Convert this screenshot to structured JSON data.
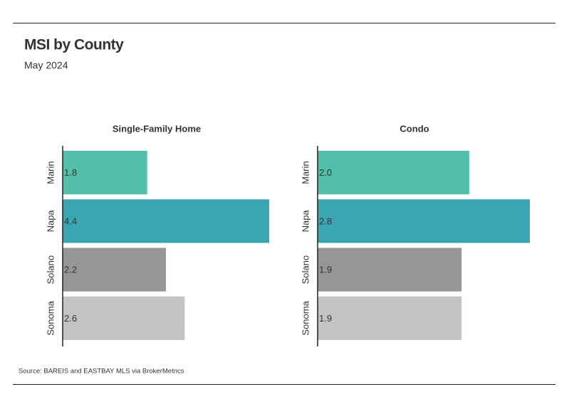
{
  "header": {
    "title": "MSI by County",
    "subtitle": "May 2024"
  },
  "source": "Source:  BAREIS and EASTBAY MLS via BrokerMetrics",
  "chart_data": [
    {
      "type": "hbar",
      "title": "Single-Family Home",
      "categories": [
        "Marin",
        "Napa",
        "Solano",
        "Sonoma"
      ],
      "values": [
        1.8,
        4.4,
        2.2,
        2.6
      ],
      "value_labels": [
        "1.8",
        "4.4",
        "2.2",
        "2.6"
      ],
      "colors": [
        "#52bfaa",
        "#3ba6b2",
        "#969696",
        "#c3c3c3"
      ],
      "xlim": [
        0,
        4.4
      ]
    },
    {
      "type": "hbar",
      "title": "Condo",
      "categories": [
        "Marin",
        "Napa",
        "Solano",
        "Sonoma"
      ],
      "values": [
        2.0,
        2.8,
        1.9,
        1.9
      ],
      "value_labels": [
        "2.0",
        "2.8",
        "1.9",
        "1.9"
      ],
      "colors": [
        "#52bfaa",
        "#3ba6b2",
        "#969696",
        "#c3c3c3"
      ],
      "xlim": [
        0,
        2.8
      ]
    }
  ]
}
